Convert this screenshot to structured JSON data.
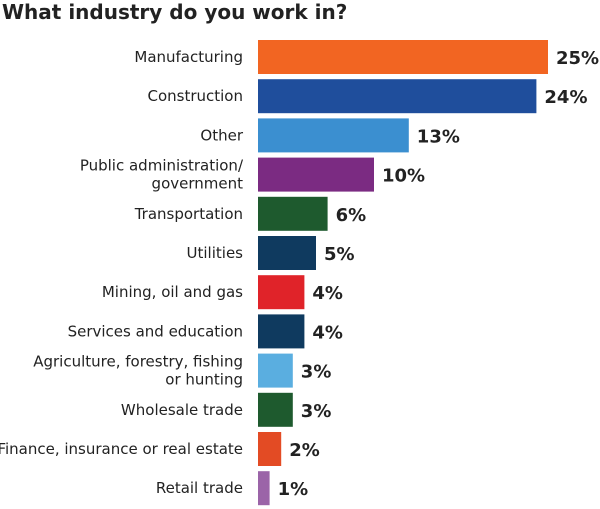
{
  "chart_data": {
    "type": "bar",
    "orientation": "horizontal",
    "title": "What industry do you work in?",
    "unit": "%",
    "xlim": [
      0,
      25
    ],
    "grid": false,
    "legend": "none",
    "categories": [
      [
        "Manufacturing"
      ],
      [
        "Construction"
      ],
      [
        "Other"
      ],
      [
        "Public administration/",
        "government"
      ],
      [
        "Transportation"
      ],
      [
        "Utilities"
      ],
      [
        "Mining, oil and gas"
      ],
      [
        "Services and education"
      ],
      [
        "Agriculture, forestry, fishing",
        "or hunting"
      ],
      [
        "Wholesale trade"
      ],
      [
        "Finance, insurance or real estate"
      ],
      [
        "Retail trade"
      ]
    ],
    "values": [
      25,
      24,
      13,
      10,
      6,
      5,
      4,
      4,
      3,
      3,
      2,
      1
    ],
    "value_labels": [
      "25%",
      "24%",
      "13%",
      "10%",
      "6%",
      "5%",
      "4%",
      "4%",
      "3%",
      "3%",
      "2%",
      "1%"
    ],
    "colors": [
      "#f26522",
      "#1f4e9c",
      "#3b8fd0",
      "#7b2b82",
      "#1e5a2e",
      "#0f3a5f",
      "#e02329",
      "#0f3a5f",
      "#5aaee0",
      "#1e5a2e",
      "#e34b24",
      "#9b64a8"
    ]
  }
}
